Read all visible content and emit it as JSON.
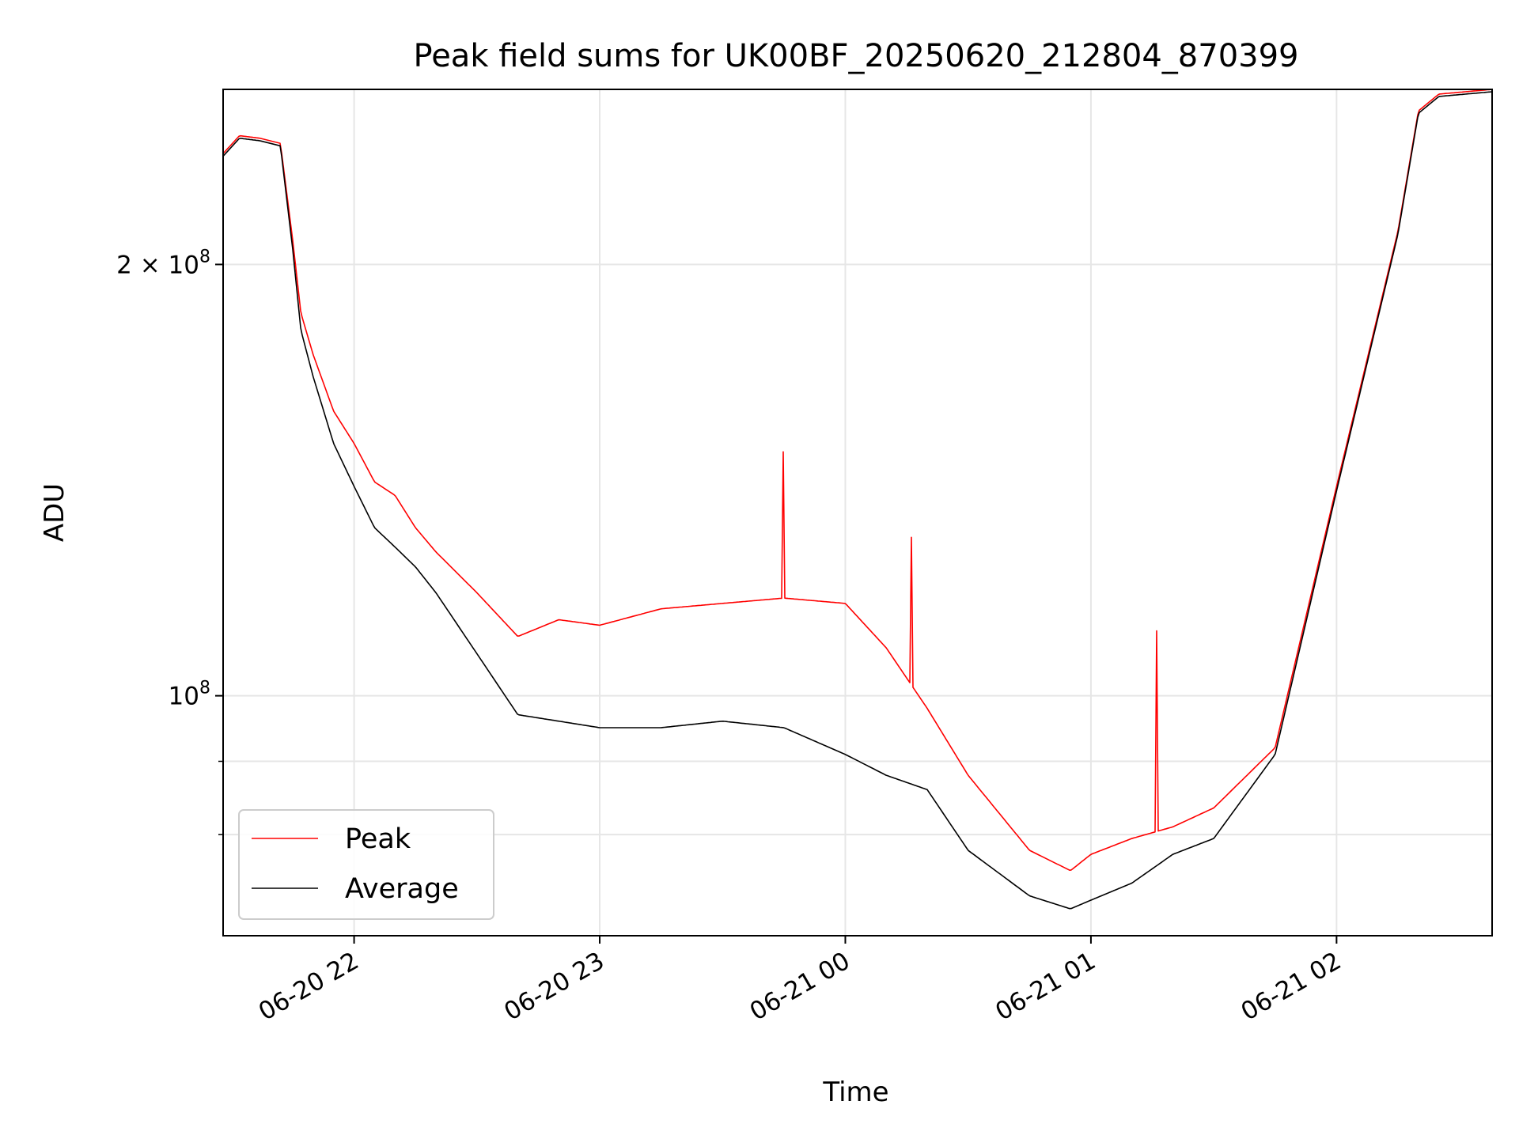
{
  "chart_data": {
    "type": "line",
    "title": "Peak field sums for UK00BF_20250620_212804_870399",
    "xlabel": "Time",
    "ylabel": "ADU",
    "y_scale": "log",
    "grid": true,
    "legend_position": "lower-left",
    "x_range": [
      "2025-06-20 21:28",
      "2025-06-21 02:38"
    ],
    "y_range": [
      68000000,
      265000000
    ],
    "x_ticks": [
      {
        "value": "2025-06-20 22:00",
        "label": "06-20 22"
      },
      {
        "value": "2025-06-20 23:00",
        "label": "06-20 23"
      },
      {
        "value": "2025-06-21 00:00",
        "label": "06-21 00"
      },
      {
        "value": "2025-06-21 01:00",
        "label": "06-21 01"
      },
      {
        "value": "2025-06-21 02:00",
        "label": "06-21 02"
      }
    ],
    "y_ticks": [
      {
        "value": 200000000,
        "label_base": "2 × 10",
        "label_exp": "8"
      },
      {
        "value": 100000000,
        "label_base": "10",
        "label_exp": "8"
      }
    ],
    "y_minor_ticks": [
      80000000,
      90000000
    ],
    "series": [
      {
        "name": "Average",
        "color": "#000000",
        "x": [
          "2025-06-20 21:28",
          "2025-06-20 21:32",
          "2025-06-20 21:37",
          "2025-06-20 21:42",
          "2025-06-20 21:45",
          "2025-06-20 21:47",
          "2025-06-20 21:50",
          "2025-06-20 21:55",
          "2025-06-20 22:00",
          "2025-06-20 22:05",
          "2025-06-20 22:10",
          "2025-06-20 22:15",
          "2025-06-20 22:20",
          "2025-06-20 22:30",
          "2025-06-20 22:40",
          "2025-06-20 22:50",
          "2025-06-20 23:00",
          "2025-06-20 23:15",
          "2025-06-20 23:30",
          "2025-06-20 23:45",
          "2025-06-21 00:00",
          "2025-06-21 00:10",
          "2025-06-21 00:20",
          "2025-06-21 00:30",
          "2025-06-21 00:45",
          "2025-06-21 00:55",
          "2025-06-21 01:00",
          "2025-06-21 01:10",
          "2025-06-21 01:20",
          "2025-06-21 01:30",
          "2025-06-21 01:45",
          "2025-06-21 02:00",
          "2025-06-21 02:15",
          "2025-06-21 02:20",
          "2025-06-21 02:25",
          "2025-06-21 02:38"
        ],
        "values": [
          238000000,
          245000000,
          244000000,
          242000000,
          205000000,
          180000000,
          167000000,
          150000000,
          140000000,
          131000000,
          127000000,
          123000000,
          118000000,
          107000000,
          97000000,
          96000000,
          95000000,
          95000000,
          96000000,
          95000000,
          91000000,
          88000000,
          86000000,
          78000000,
          72500000,
          71000000,
          72000000,
          74000000,
          77500000,
          79500000,
          91000000,
          139000000,
          210000000,
          255000000,
          262000000,
          264000000
        ]
      },
      {
        "name": "Peak",
        "color": "#ff0000",
        "x": [
          "2025-06-20 21:28",
          "2025-06-20 21:32",
          "2025-06-20 21:37",
          "2025-06-20 21:42",
          "2025-06-20 21:45",
          "2025-06-20 21:47",
          "2025-06-20 21:50",
          "2025-06-20 21:55",
          "2025-06-20 22:00",
          "2025-06-20 22:05",
          "2025-06-20 22:10",
          "2025-06-20 22:15",
          "2025-06-20 22:20",
          "2025-06-20 22:30",
          "2025-06-20 22:40",
          "2025-06-20 22:50",
          "2025-06-20 23:00",
          "2025-06-20 23:15",
          "2025-06-20 23:30",
          "2025-06-20 23:45",
          "2025-06-21 00:00",
          "2025-06-21 00:10",
          "2025-06-21 00:20",
          "2025-06-21 00:30",
          "2025-06-21 00:45",
          "2025-06-21 00:55",
          "2025-06-21 01:00",
          "2025-06-21 01:10",
          "2025-06-21 01:20",
          "2025-06-21 01:30",
          "2025-06-21 01:45",
          "2025-06-21 02:00",
          "2025-06-21 02:15",
          "2025-06-21 02:20",
          "2025-06-21 02:25",
          "2025-06-21 02:38"
        ],
        "values": [
          239000000,
          246000000,
          245000000,
          243000000,
          208000000,
          185000000,
          173000000,
          158000000,
          150000000,
          141000000,
          138000000,
          131000000,
          126000000,
          118000000,
          110000000,
          113000000,
          112000000,
          115000000,
          116000000,
          117000000,
          116000000,
          108000000,
          98000000,
          88000000,
          78000000,
          75500000,
          77500000,
          79500000,
          81000000,
          83500000,
          92000000,
          140000000,
          211000000,
          256000000,
          263000000,
          265000000
        ],
        "spikes": [
          {
            "x": "2025-06-20 23:45",
            "value": 148000000
          },
          {
            "x": "2025-06-21 00:16",
            "value": 129000000
          },
          {
            "x": "2025-06-21 01:16",
            "value": 111000000
          }
        ]
      }
    ],
    "legend": [
      "Peak",
      "Average"
    ]
  }
}
